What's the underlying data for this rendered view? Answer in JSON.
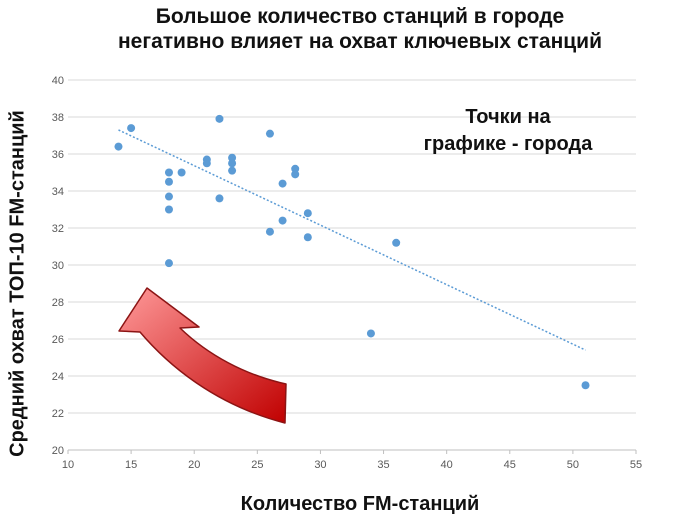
{
  "chart_data": {
    "type": "scatter",
    "title": [
      "Большое количество станций в городе",
      "негативно влияет на охват ключевых станций"
    ],
    "xlabel": "Количество FM-станций",
    "ylabel": "Средний охват ТОП-10 FM-станций",
    "xlim": [
      10,
      55
    ],
    "ylim": [
      20,
      40
    ],
    "x_ticks": [
      10,
      15,
      20,
      25,
      30,
      35,
      40,
      45,
      50,
      55
    ],
    "y_ticks": [
      20,
      22,
      24,
      26,
      28,
      30,
      32,
      34,
      36,
      38,
      40
    ],
    "grid": "horizontal",
    "series": [
      {
        "points": [
          {
            "x": 14,
            "y": 36.4
          },
          {
            "x": 15,
            "y": 37.4
          },
          {
            "x": 18,
            "y": 35.0
          },
          {
            "x": 18,
            "y": 34.5
          },
          {
            "x": 18,
            "y": 33.7
          },
          {
            "x": 18,
            "y": 33.0
          },
          {
            "x": 18,
            "y": 30.1
          },
          {
            "x": 19,
            "y": 35.0
          },
          {
            "x": 21,
            "y": 35.7
          },
          {
            "x": 21,
            "y": 35.5
          },
          {
            "x": 22,
            "y": 37.9
          },
          {
            "x": 22,
            "y": 33.6
          },
          {
            "x": 23,
            "y": 35.8
          },
          {
            "x": 23,
            "y": 35.5
          },
          {
            "x": 23,
            "y": 35.1
          },
          {
            "x": 26,
            "y": 37.1
          },
          {
            "x": 26,
            "y": 31.8
          },
          {
            "x": 27,
            "y": 34.4
          },
          {
            "x": 27,
            "y": 32.4
          },
          {
            "x": 28,
            "y": 35.2
          },
          {
            "x": 28,
            "y": 34.9
          },
          {
            "x": 29,
            "y": 32.8
          },
          {
            "x": 29,
            "y": 31.5
          },
          {
            "x": 34,
            "y": 26.3
          },
          {
            "x": 36,
            "y": 31.2
          },
          {
            "x": 51,
            "y": 23.5
          }
        ]
      }
    ],
    "trendline": {
      "x": [
        14,
        51
      ],
      "y": [
        37.3,
        25.4
      ]
    },
    "colors": {
      "points": "#5b9bd5",
      "trendline": "#5b9bd5",
      "arrow_fill_light": "#ff9a9a",
      "arrow_fill_dark": "#c00000",
      "arrow_stroke": "#8c1414"
    }
  },
  "annotation": {
    "line1": "Точки на",
    "line2": "графике - города"
  }
}
